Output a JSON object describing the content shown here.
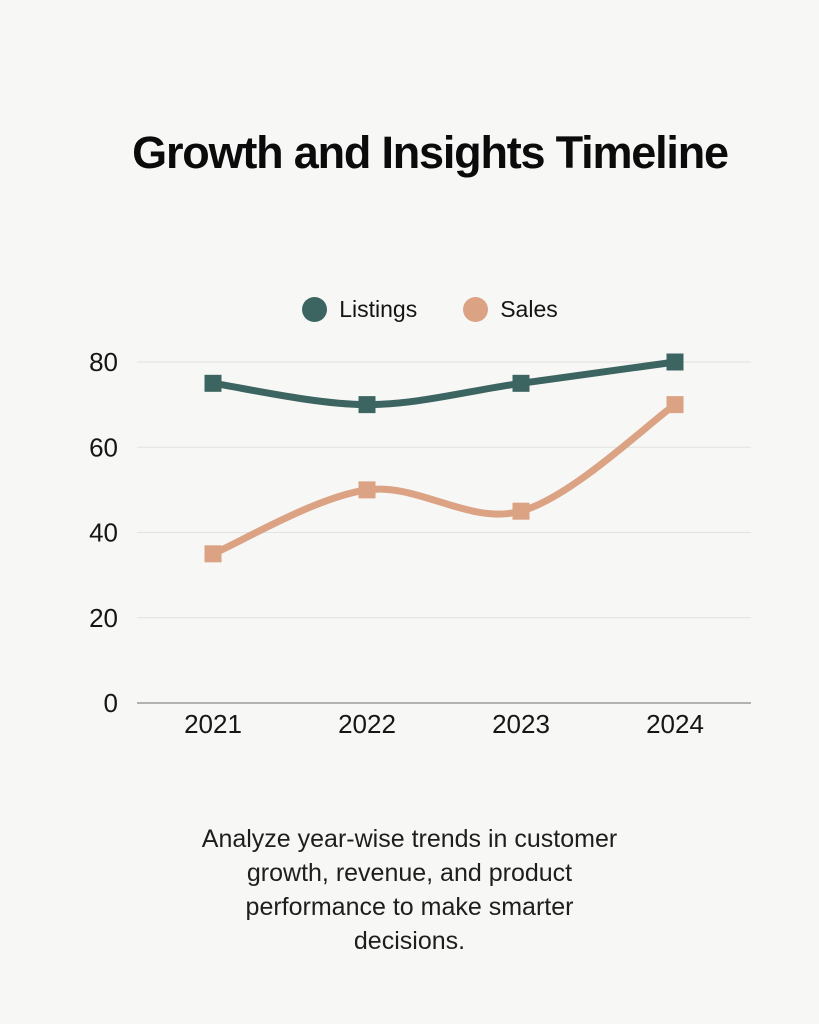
{
  "page": {
    "background_color": "#f7f7f5"
  },
  "title": "Growth and Insights Timeline",
  "chart_data": {
    "type": "line",
    "line_style": "smooth",
    "marker": "square",
    "categories": [
      "2021",
      "2022",
      "2023",
      "2024"
    ],
    "series": [
      {
        "name": "Listings",
        "color": "#3c6562",
        "values": [
          75,
          70,
          75,
          80
        ]
      },
      {
        "name": "Sales",
        "color": "#dba284",
        "values": [
          35,
          50,
          45,
          70
        ]
      }
    ],
    "title": "Growth and Insights Timeline",
    "xlabel": "",
    "ylabel": "",
    "ylim": [
      0,
      80
    ],
    "yticks": [
      0,
      20,
      40,
      60,
      80
    ],
    "grid": true,
    "legend_position": "top",
    "grid_color": "#e3e2e0",
    "axis_line_color": "#b3b2b0"
  },
  "description": {
    "lines": [
      "Analyze year-wise trends in customer",
      "growth, revenue, and product",
      "performance to make smarter",
      "decisions."
    ]
  }
}
